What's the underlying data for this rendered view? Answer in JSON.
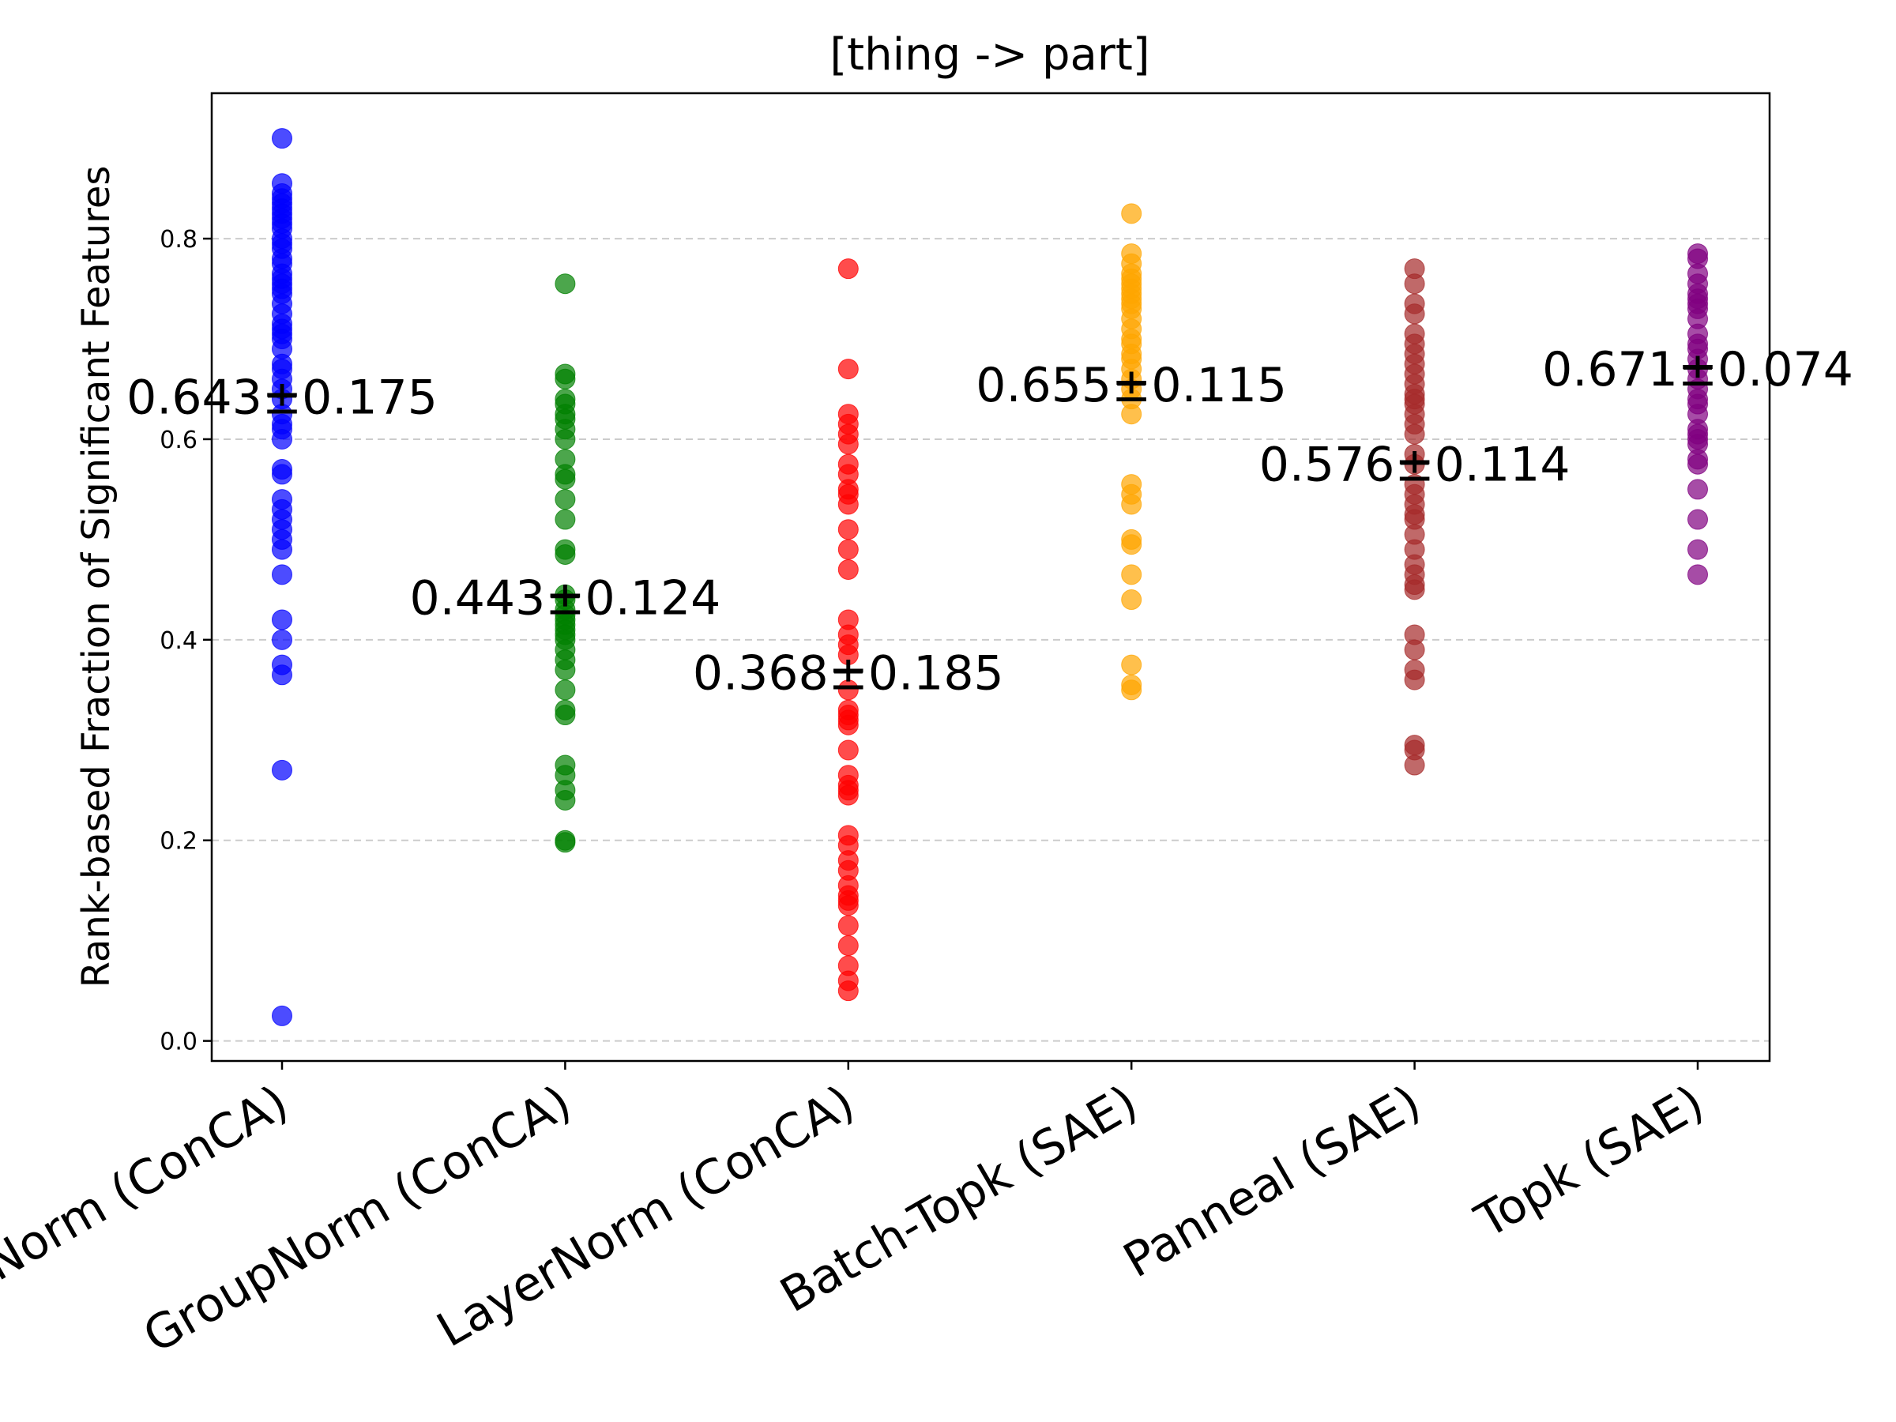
{
  "chart_data": {
    "type": "scatter",
    "title": "[thing -> part]",
    "xlabel": "",
    "ylabel": "Rank-based Fraction of Significant Features",
    "ylim": [
      -0.02,
      0.945
    ],
    "yticks": [
      "0.0",
      "0.2",
      "0.4",
      "0.6",
      "0.8"
    ],
    "grid": "y-dashed",
    "categories": [
      "BatchNorm (ConCA)",
      "GroupNorm (ConCA)",
      "LayerNorm (ConCA)",
      "Batch-Topk (SAE)",
      "Panneal (SAE)",
      "Topk (SAE)"
    ],
    "series": [
      {
        "name": "BatchNorm (ConCA)",
        "color": "#0000ff",
        "annotation": "0.643±0.175",
        "mean": 0.643,
        "values": [
          0.9,
          0.855,
          0.845,
          0.84,
          0.835,
          0.83,
          0.825,
          0.82,
          0.815,
          0.81,
          0.8,
          0.795,
          0.79,
          0.78,
          0.775,
          0.765,
          0.76,
          0.755,
          0.75,
          0.745,
          0.735,
          0.725,
          0.715,
          0.71,
          0.705,
          0.7,
          0.69,
          0.675,
          0.67,
          0.66,
          0.65,
          0.64,
          0.625,
          0.615,
          0.61,
          0.6,
          0.57,
          0.565,
          0.54,
          0.53,
          0.52,
          0.51,
          0.5,
          0.49,
          0.465,
          0.42,
          0.4,
          0.375,
          0.365,
          0.27,
          0.025
        ]
      },
      {
        "name": "GroupNorm (ConCA)",
        "color": "#008000",
        "annotation": "0.443±0.124",
        "mean": 0.443,
        "values": [
          0.755,
          0.665,
          0.66,
          0.64,
          0.635,
          0.625,
          0.62,
          0.61,
          0.6,
          0.58,
          0.565,
          0.56,
          0.54,
          0.52,
          0.49,
          0.485,
          0.445,
          0.44,
          0.43,
          0.425,
          0.42,
          0.415,
          0.41,
          0.405,
          0.4,
          0.39,
          0.38,
          0.37,
          0.35,
          0.33,
          0.325,
          0.275,
          0.265,
          0.25,
          0.24,
          0.2,
          0.198
        ]
      },
      {
        "name": "LayerNorm (ConCA)",
        "color": "#ff0000",
        "annotation": "0.368±0.185",
        "mean": 0.368,
        "values": [
          0.77,
          0.67,
          0.625,
          0.615,
          0.605,
          0.595,
          0.575,
          0.565,
          0.55,
          0.545,
          0.535,
          0.51,
          0.49,
          0.47,
          0.42,
          0.405,
          0.395,
          0.385,
          0.35,
          0.33,
          0.325,
          0.32,
          0.315,
          0.29,
          0.265,
          0.255,
          0.25,
          0.245,
          0.205,
          0.195,
          0.18,
          0.17,
          0.155,
          0.145,
          0.14,
          0.135,
          0.115,
          0.095,
          0.075,
          0.06,
          0.05
        ]
      },
      {
        "name": "Batch-Topk (SAE)",
        "color": "#ffa500",
        "annotation": "0.655±0.115",
        "mean": 0.655,
        "values": [
          0.825,
          0.785,
          0.775,
          0.765,
          0.76,
          0.755,
          0.75,
          0.745,
          0.74,
          0.735,
          0.73,
          0.72,
          0.71,
          0.7,
          0.695,
          0.685,
          0.68,
          0.67,
          0.66,
          0.65,
          0.64,
          0.625,
          0.555,
          0.545,
          0.535,
          0.5,
          0.495,
          0.465,
          0.44,
          0.375,
          0.355,
          0.35
        ]
      },
      {
        "name": "Panneal (SAE)",
        "color": "#a52a2a",
        "annotation": "0.576±0.114",
        "mean": 0.576,
        "values": [
          0.77,
          0.755,
          0.735,
          0.725,
          0.705,
          0.695,
          0.685,
          0.675,
          0.665,
          0.655,
          0.645,
          0.64,
          0.635,
          0.625,
          0.615,
          0.605,
          0.585,
          0.575,
          0.555,
          0.545,
          0.535,
          0.525,
          0.52,
          0.505,
          0.49,
          0.475,
          0.465,
          0.455,
          0.45,
          0.405,
          0.39,
          0.37,
          0.36,
          0.295,
          0.29,
          0.275
        ]
      },
      {
        "name": "Topk (SAE)",
        "color": "#800080",
        "annotation": "0.671±0.074",
        "mean": 0.671,
        "values": [
          0.785,
          0.78,
          0.765,
          0.755,
          0.745,
          0.74,
          0.735,
          0.73,
          0.72,
          0.705,
          0.695,
          0.69,
          0.68,
          0.67,
          0.66,
          0.65,
          0.64,
          0.635,
          0.625,
          0.61,
          0.605,
          0.6,
          0.595,
          0.58,
          0.575,
          0.55,
          0.52,
          0.49,
          0.465
        ]
      }
    ]
  }
}
